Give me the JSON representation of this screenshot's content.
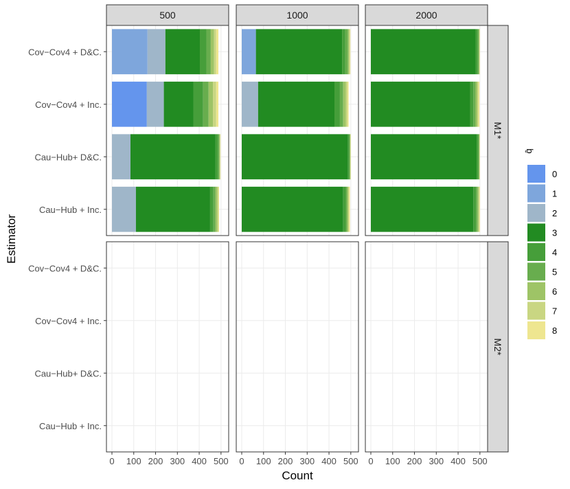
{
  "chart_data": {
    "type": "bar",
    "orientation": "horizontal",
    "stacked": true,
    "xlabel": "Count",
    "ylabel": "Estimator",
    "xlim": [
      0,
      510
    ],
    "xticks": [
      0,
      100,
      200,
      300,
      400,
      500
    ],
    "column_facets": [
      "500",
      "1000",
      "2000"
    ],
    "row_facets": [
      "M1*",
      "M2*"
    ],
    "categories": [
      "Cov−Cov4 + D&C.",
      "Cov−Cov4 + Inc.",
      "Cau−Hub+ D&C.",
      "Cau−Hub + Inc."
    ],
    "legend": {
      "title": "q̂",
      "labels": [
        "0",
        "1",
        "2",
        "3",
        "4",
        "5",
        "6",
        "7",
        "8"
      ],
      "colors": [
        "#6495ED",
        "#7EA6DC",
        "#9FB6C9",
        "#228B22",
        "#469E3A",
        "#68AD4E",
        "#9EC466",
        "#C9D682",
        "#EEE690"
      ],
      "position": "right"
    },
    "panels": [
      {
        "row": "M1*",
        "col": "500",
        "bars": [
          [
            0,
            163,
            82,
            158,
            30,
            20,
            15,
            10,
            10
          ],
          [
            160,
            0,
            78,
            135,
            45,
            25,
            20,
            15,
            10
          ],
          [
            0,
            0,
            85,
            390,
            12,
            5,
            3,
            2,
            1
          ],
          [
            0,
            0,
            110,
            340,
            15,
            10,
            8,
            5,
            3
          ]
        ]
      },
      {
        "row": "M1*",
        "col": "1000",
        "bars": [
          [
            0,
            65,
            0,
            395,
            15,
            12,
            5,
            4,
            2
          ],
          [
            0,
            0,
            75,
            350,
            25,
            15,
            12,
            8,
            5
          ],
          [
            0,
            0,
            0,
            487,
            6,
            3,
            2,
            1,
            1
          ],
          [
            0,
            0,
            0,
            465,
            12,
            6,
            5,
            3,
            5
          ]
        ]
      },
      {
        "row": "M1*",
        "col": "2000",
        "bars": [
          [
            0,
            0,
            0,
            480,
            10,
            5,
            3,
            1,
            1
          ],
          [
            0,
            0,
            0,
            455,
            15,
            10,
            8,
            5,
            5
          ],
          [
            0,
            0,
            0,
            485,
            8,
            3,
            2,
            1,
            1
          ],
          [
            0,
            0,
            0,
            470,
            12,
            7,
            5,
            3,
            3
          ]
        ]
      }
    ]
  }
}
